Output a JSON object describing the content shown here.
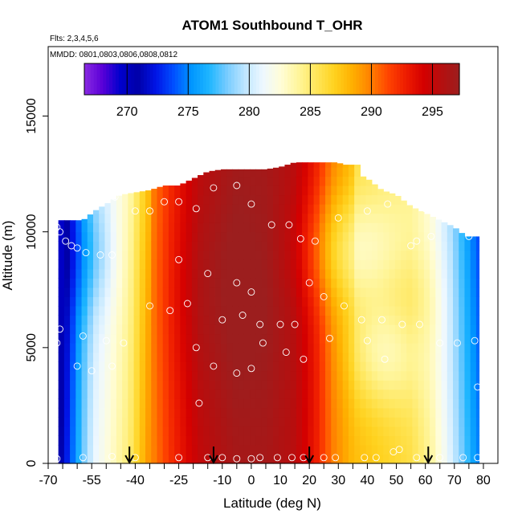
{
  "chart_data": {
    "type": "heatmap",
    "title": "ATOM1 Southbound T_OHR",
    "flights_note": "Flts: 2,3,4,5,6",
    "dates_note": "MMDD: 0801,0803,0806,0808,0812",
    "xlabel": "Latitude (deg N)",
    "ylabel": "Altitude (m)",
    "xlim": [
      -70,
      85
    ],
    "ylim": [
      0,
      18000
    ],
    "x_ticks": [
      -70,
      -55,
      -40,
      -25,
      -10,
      0,
      10,
      20,
      30,
      40,
      50,
      60,
      70,
      80
    ],
    "x_tick_labels": [
      "-70",
      "-55",
      "-40",
      "-25",
      "-10",
      "0",
      "10",
      "20",
      "30",
      "40",
      "50",
      "60",
      "70",
      "80"
    ],
    "x_minor_ticks": [
      -65,
      -60,
      -50,
      -45,
      -35,
      -30,
      -20,
      -15,
      -5,
      5,
      15,
      25,
      35,
      45,
      55,
      65,
      75
    ],
    "y_ticks": [
      0,
      5000,
      10000,
      15000
    ],
    "y_tick_labels": [
      "0",
      "5000",
      "10000",
      "15000"
    ],
    "colorbar": {
      "range": [
        266.5,
        297.2
      ],
      "ticks": [
        270,
        275,
        280,
        285,
        290,
        295
      ],
      "tick_labels": [
        "270",
        "275",
        "280",
        "285",
        "290",
        "295"
      ],
      "colors": [
        "#8a2be2",
        "#5a00d8",
        "#0000cd",
        "#0000a8",
        "#0014e6",
        "#0050ff",
        "#0096ff",
        "#1fb6ff",
        "#78ccff",
        "#bfe6ff",
        "#eef8ff",
        "#fffdd8",
        "#fff59a",
        "#ffe65a",
        "#ffd21f",
        "#ffb000",
        "#ff8200",
        "#ff4500",
        "#ee1c00",
        "#d40000",
        "#b50f0f",
        "#9c1e1e"
      ]
    },
    "latitude_bounds": [
      -66.5,
      78.5
    ],
    "top_profile": {
      "lat": [
        -66.5,
        -58,
        -54,
        -50,
        -45,
        -40,
        -35,
        -30,
        -25,
        -20,
        -15,
        -10,
        -5,
        0,
        5,
        10,
        15,
        20,
        25,
        30,
        35,
        40,
        45,
        50,
        55,
        60,
        65,
        70,
        74,
        78.5
      ],
      "alt": [
        10500,
        10500,
        10900,
        11200,
        11600,
        11700,
        11800,
        12000,
        12000,
        12300,
        12600,
        12700,
        12700,
        12700,
        12700,
        12800,
        13000,
        13000,
        13000,
        13000,
        12600,
        12300,
        11800,
        11600,
        11100,
        10800,
        10500,
        10200,
        9800,
        9800
      ]
    },
    "upper_notch": {
      "lat_range": [
        20,
        38
      ],
      "alt": 12900
    },
    "temperature_field": {
      "base_by_lat": [
        {
          "lat": -67,
          "t": 270
        },
        {
          "lat": -63,
          "t": 273
        },
        {
          "lat": -58,
          "t": 278
        },
        {
          "lat": -54,
          "t": 281
        },
        {
          "lat": -48,
          "t": 283
        },
        {
          "lat": -42,
          "t": 285
        },
        {
          "lat": -36,
          "t": 289
        },
        {
          "lat": -28,
          "t": 292
        },
        {
          "lat": -18,
          "t": 295
        },
        {
          "lat": -5,
          "t": 296.5
        },
        {
          "lat": 5,
          "t": 296.5
        },
        {
          "lat": 15,
          "t": 295.5
        },
        {
          "lat": 22,
          "t": 293
        },
        {
          "lat": 28,
          "t": 290
        },
        {
          "lat": 35,
          "t": 288
        },
        {
          "lat": 45,
          "t": 287
        },
        {
          "lat": 55,
          "t": 286
        },
        {
          "lat": 62,
          "t": 284
        },
        {
          "lat": 68,
          "t": 281
        },
        {
          "lat": 73,
          "t": 278
        },
        {
          "lat": 78,
          "t": 275
        }
      ],
      "anomalies": [
        {
          "lat": -10,
          "alt": 7500,
          "dlat": 22,
          "dalt": 5000,
          "dt": 1.2
        },
        {
          "lat": 35,
          "alt": 9200,
          "dlat": 18,
          "dalt": 2500,
          "dt": -3.5
        },
        {
          "lat": 45,
          "alt": 4800,
          "dlat": 12,
          "dalt": 2200,
          "dt": -3.0
        },
        {
          "lat": 55,
          "alt": 7200,
          "dlat": 12,
          "dalt": 2500,
          "dt": 1.0
        },
        {
          "lat": -55,
          "alt": 9000,
          "dlat": 8,
          "dalt": 2500,
          "dt": -2.0
        }
      ]
    },
    "observations": [
      {
        "lat": -67,
        "alt": 10200
      },
      {
        "lat": -66,
        "alt": 10000
      },
      {
        "lat": -64,
        "alt": 9600
      },
      {
        "lat": -62,
        "alt": 9400
      },
      {
        "lat": -60,
        "alt": 9300
      },
      {
        "lat": -57,
        "alt": 9100
      },
      {
        "lat": -52,
        "alt": 9000
      },
      {
        "lat": -48,
        "alt": 9000
      },
      {
        "lat": -66,
        "alt": 5800
      },
      {
        "lat": -67,
        "alt": 5200
      },
      {
        "lat": -58,
        "alt": 5500
      },
      {
        "lat": -50,
        "alt": 5300
      },
      {
        "lat": -44,
        "alt": 5200
      },
      {
        "lat": -60,
        "alt": 4200
      },
      {
        "lat": -55,
        "alt": 4000
      },
      {
        "lat": -48,
        "alt": 4200
      },
      {
        "lat": -47,
        "alt": 11500
      },
      {
        "lat": -40,
        "alt": 10900
      },
      {
        "lat": -35,
        "alt": 10900
      },
      {
        "lat": -30,
        "alt": 11300
      },
      {
        "lat": -25,
        "alt": 11300
      },
      {
        "lat": -19,
        "alt": 11000
      },
      {
        "lat": -13,
        "alt": 11900
      },
      {
        "lat": -5,
        "alt": 12000
      },
      {
        "lat": 0,
        "alt": 11200
      },
      {
        "lat": 7,
        "alt": 10300
      },
      {
        "lat": 13,
        "alt": 10300
      },
      {
        "lat": 17,
        "alt": 9700
      },
      {
        "lat": 22,
        "alt": 9600
      },
      {
        "lat": 30,
        "alt": 10600
      },
      {
        "lat": 40,
        "alt": 10900
      },
      {
        "lat": 47,
        "alt": 11200
      },
      {
        "lat": -25,
        "alt": 8800
      },
      {
        "lat": -15,
        "alt": 8200
      },
      {
        "lat": -5,
        "alt": 7800
      },
      {
        "lat": 0,
        "alt": 7400
      },
      {
        "lat": 20,
        "alt": 7800
      },
      {
        "lat": 25,
        "alt": 7200
      },
      {
        "lat": 32,
        "alt": 6800
      },
      {
        "lat": 38,
        "alt": 6200
      },
      {
        "lat": 45,
        "alt": 6200
      },
      {
        "lat": 52,
        "alt": 6000
      },
      {
        "lat": 58,
        "alt": 6000
      },
      {
        "lat": 65,
        "alt": 5200
      },
      {
        "lat": 71,
        "alt": 5200
      },
      {
        "lat": 77,
        "alt": 5300
      },
      {
        "lat": -35,
        "alt": 6800
      },
      {
        "lat": -28,
        "alt": 6600
      },
      {
        "lat": -22,
        "alt": 6900
      },
      {
        "lat": -10,
        "alt": 6200
      },
      {
        "lat": -3,
        "alt": 6400
      },
      {
        "lat": 3,
        "alt": 6000
      },
      {
        "lat": 10,
        "alt": 6000
      },
      {
        "lat": 15,
        "alt": 6000
      },
      {
        "lat": -19,
        "alt": 5000
      },
      {
        "lat": 4,
        "alt": 5200
      },
      {
        "lat": 12,
        "alt": 4800
      },
      {
        "lat": 18,
        "alt": 4500
      },
      {
        "lat": 27,
        "alt": 5400
      },
      {
        "lat": 40,
        "alt": 5300
      },
      {
        "lat": 46,
        "alt": 4500
      },
      {
        "lat": -13,
        "alt": 4200
      },
      {
        "lat": -5,
        "alt": 3900
      },
      {
        "lat": 0,
        "alt": 4100
      },
      {
        "lat": -18,
        "alt": 2600
      },
      {
        "lat": 78,
        "alt": 3300
      },
      {
        "lat": -67,
        "alt": 200
      },
      {
        "lat": -58,
        "alt": 250
      },
      {
        "lat": -48,
        "alt": 300
      },
      {
        "lat": -40,
        "alt": 250
      },
      {
        "lat": -25,
        "alt": 250
      },
      {
        "lat": -15,
        "alt": 250
      },
      {
        "lat": -10,
        "alt": 250
      },
      {
        "lat": -5,
        "alt": 200
      },
      {
        "lat": 0,
        "alt": 200
      },
      {
        "lat": 3,
        "alt": 250
      },
      {
        "lat": 9,
        "alt": 250
      },
      {
        "lat": 14,
        "alt": 250
      },
      {
        "lat": 18,
        "alt": 250
      },
      {
        "lat": 25,
        "alt": 250
      },
      {
        "lat": 29,
        "alt": 250
      },
      {
        "lat": 39,
        "alt": 250
      },
      {
        "lat": 43,
        "alt": 250
      },
      {
        "lat": 49,
        "alt": 500
      },
      {
        "lat": 51,
        "alt": 600
      },
      {
        "lat": 57,
        "alt": 250
      },
      {
        "lat": 65,
        "alt": 250
      },
      {
        "lat": 73,
        "alt": 250
      },
      {
        "lat": 78,
        "alt": 250
      },
      {
        "lat": 62,
        "alt": 9800
      },
      {
        "lat": 57,
        "alt": 9600
      },
      {
        "lat": 55,
        "alt": 9400
      },
      {
        "lat": 75,
        "alt": 9800
      },
      {
        "lat": 60,
        "alt": 11000
      }
    ],
    "markers": {
      "type": "down-arrow",
      "lat": [
        -42,
        -13,
        20,
        61
      ]
    }
  }
}
